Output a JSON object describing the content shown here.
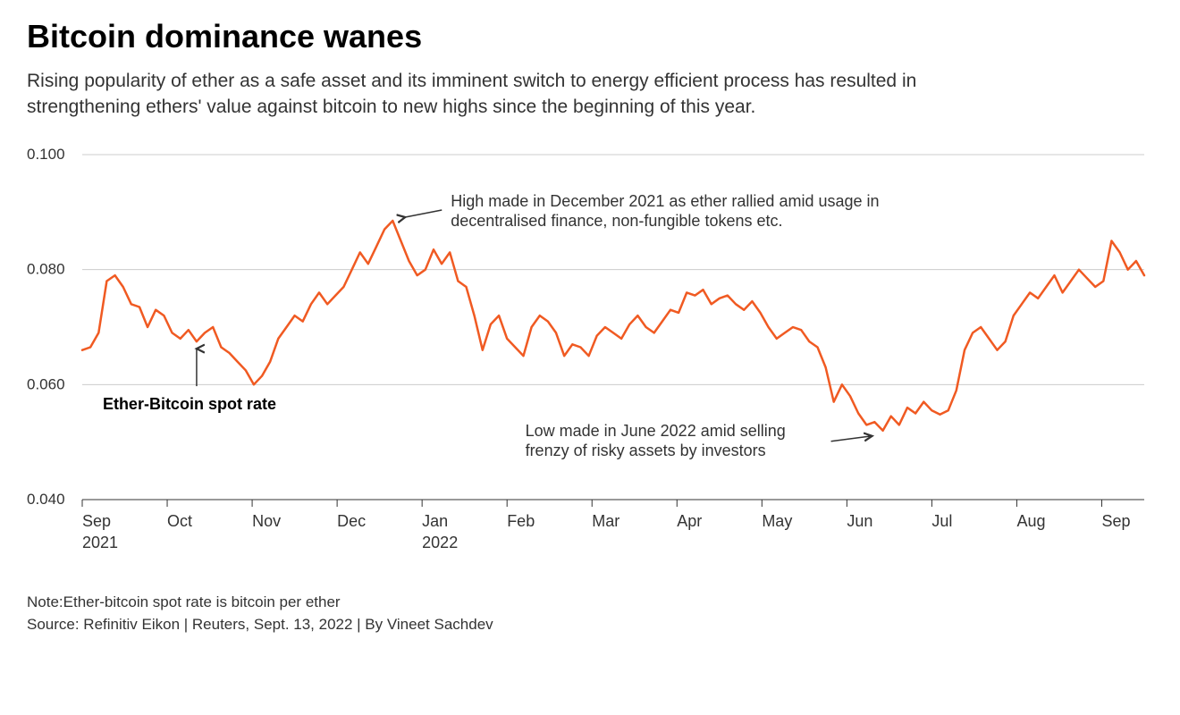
{
  "title": "Bitcoin dominance wanes",
  "subtitle": "Rising popularity of ether as a safe asset and its imminent switch to energy efficient process has resulted in strengthening ethers' value against bitcoin to new highs since the beginning of this year.",
  "note": "Note:Ether-bitcoin spot rate is bitcoin per ether",
  "source": "Source: Refinitiv Eikon | Reuters, Sept. 13, 2022 | By Vineet Sachdev",
  "chart": {
    "type": "line",
    "background_color": "#ffffff",
    "grid_color": "#cccccc",
    "baseline_color": "#333333",
    "line_color": "#f05a22",
    "line_width": 2.5,
    "text_color": "#333333",
    "label_fontsize": 18,
    "ylim": [
      0.04,
      0.1
    ],
    "yticks": [
      0.04,
      0.06,
      0.08,
      0.1
    ],
    "ytick_labels": [
      "0.040",
      "0.060",
      "0.080",
      "0.100"
    ],
    "x_months": [
      "Sep",
      "Oct",
      "Nov",
      "Dec",
      "Jan",
      "Feb",
      "Mar",
      "Apr",
      "May",
      "Jun",
      "Jul",
      "Aug",
      "Sep"
    ],
    "x_years": {
      "0": "2021",
      "4": "2022"
    },
    "series": [
      0.066,
      0.0665,
      0.069,
      0.078,
      0.079,
      0.077,
      0.074,
      0.0735,
      0.07,
      0.073,
      0.072,
      0.069,
      0.068,
      0.0695,
      0.0675,
      0.069,
      0.07,
      0.0665,
      0.0655,
      0.064,
      0.0625,
      0.06,
      0.0615,
      0.064,
      0.068,
      0.07,
      0.072,
      0.071,
      0.074,
      0.076,
      0.074,
      0.0755,
      0.077,
      0.08,
      0.083,
      0.081,
      0.084,
      0.087,
      0.0885,
      0.085,
      0.0815,
      0.079,
      0.08,
      0.0835,
      0.081,
      0.083,
      0.078,
      0.077,
      0.072,
      0.066,
      0.0705,
      0.072,
      0.068,
      0.0665,
      0.065,
      0.07,
      0.072,
      0.071,
      0.069,
      0.065,
      0.067,
      0.0665,
      0.065,
      0.0685,
      0.07,
      0.069,
      0.068,
      0.0705,
      0.072,
      0.07,
      0.069,
      0.071,
      0.073,
      0.0725,
      0.076,
      0.0755,
      0.0765,
      0.074,
      0.075,
      0.0755,
      0.074,
      0.073,
      0.0745,
      0.0725,
      0.07,
      0.068,
      0.069,
      0.07,
      0.0695,
      0.0675,
      0.0665,
      0.063,
      0.057,
      0.06,
      0.058,
      0.055,
      0.053,
      0.0535,
      0.052,
      0.0545,
      0.053,
      0.056,
      0.055,
      0.057,
      0.0555,
      0.0548,
      0.0555,
      0.059,
      0.066,
      0.069,
      0.07,
      0.068,
      0.066,
      0.0675,
      0.072,
      0.074,
      0.076,
      0.075,
      0.077,
      0.079,
      0.076,
      0.078,
      0.08,
      0.0785,
      0.077,
      0.078,
      0.085,
      0.083,
      0.08,
      0.0815,
      0.079
    ],
    "annotations": {
      "series_label": {
        "text": "Ether-Bitcoin spot rate",
        "x_idx": 12,
        "arrow_to_idx": 14
      },
      "high": {
        "line1": "High made in December 2021 as ether rallied amid usage in",
        "line2": "decentralised finance, non-fungible tokens etc.",
        "arrow_to_idx": 38
      },
      "low": {
        "line1": "Low made in June 2022 amid selling",
        "line2": "frenzy of risky assets by investors",
        "arrow_to_idx": 98
      }
    }
  }
}
